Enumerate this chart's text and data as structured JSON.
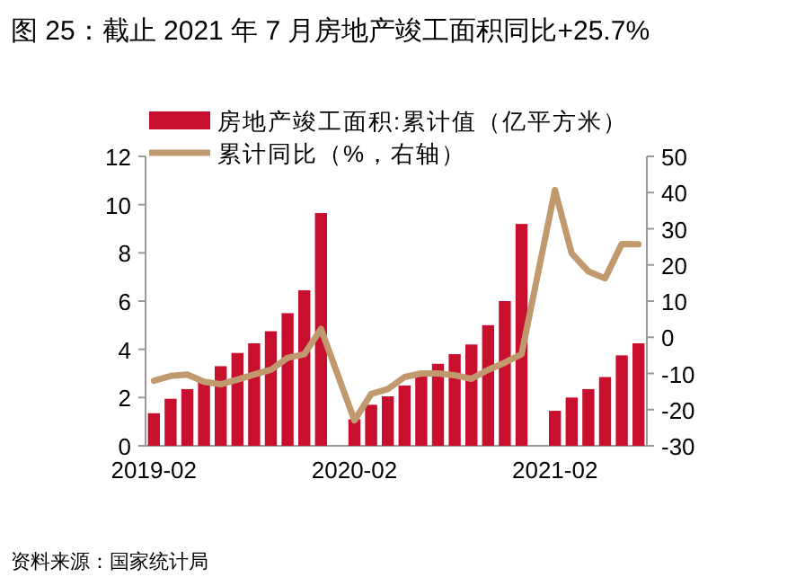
{
  "chart_data": {
    "type": "bar",
    "title": "图 25：截止 2021 年 7 月房地产竣工面积同比+25.7%",
    "categories": [
      "2019-02",
      null,
      null,
      null,
      null,
      null,
      null,
      null,
      null,
      null,
      null,
      null,
      "2020-02",
      null,
      null,
      null,
      null,
      null,
      null,
      null,
      null,
      null,
      null,
      null,
      "2021-02",
      null,
      null,
      null,
      null,
      null
    ],
    "series": [
      {
        "name": "房地产竣工面积:累计值（亿平方米）",
        "color": "#c8102e",
        "values": [
          1.35,
          1.95,
          2.35,
          2.7,
          3.3,
          3.85,
          4.25,
          4.75,
          5.5,
          6.45,
          9.65,
          null,
          1.1,
          1.7,
          2.05,
          2.5,
          2.9,
          3.4,
          3.8,
          4.2,
          5.0,
          6.0,
          9.2,
          null,
          1.45,
          2.0,
          2.35,
          2.85,
          3.75,
          4.25
        ]
      },
      {
        "name": "累计同比（%，右轴）",
        "type": "line",
        "axis": "y2",
        "color": "#c09a6e",
        "values": [
          -12,
          -10.7,
          -10.3,
          -12.3,
          -13,
          -11.7,
          -10.3,
          -9,
          -5.7,
          -4.7,
          2.3,
          null,
          -23,
          -15.7,
          -14.3,
          -11,
          -10,
          -10,
          -10.5,
          -11.5,
          -9,
          -7,
          -4.7,
          null,
          40.7,
          23.2,
          18.2,
          16.3,
          25.8,
          25.7
        ]
      }
    ],
    "ylim": [
      0,
      12
    ],
    "yticks": [
      0,
      2,
      4,
      6,
      8,
      10,
      12
    ],
    "y2lim": [
      -30,
      50
    ],
    "y2ticks": [
      -30,
      -20,
      -10,
      0,
      10,
      20,
      30,
      40,
      50
    ],
    "legend": "top left",
    "annotations": [
      "资料来源：国家统计局"
    ]
  }
}
